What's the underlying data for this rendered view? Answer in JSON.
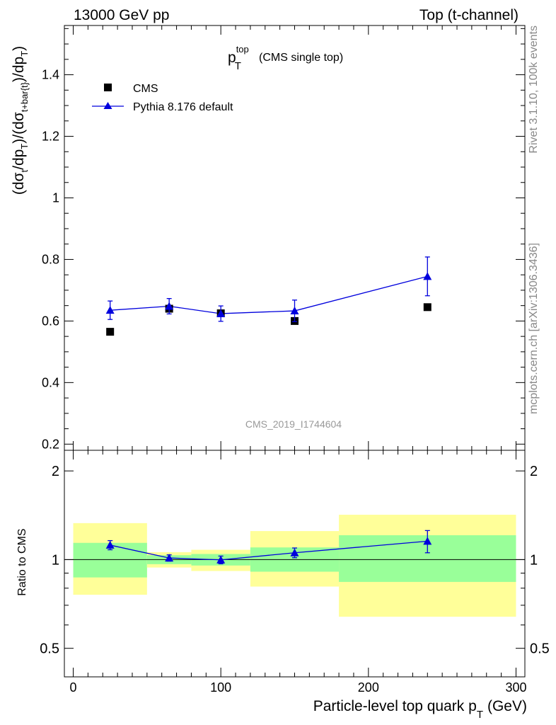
{
  "header": {
    "left": "13000 GeV pp",
    "right": "Top (t-channel)"
  },
  "side_text": {
    "top": "Rivet 3.1.10,  100k events",
    "bottom": "mcplots.cern.ch [arXiv:1306.3436]"
  },
  "watermark": "CMS_2019_I1744604",
  "title": {
    "main": "p",
    "sup": "top",
    "sub": "T",
    "suffix": "(CMS single top)"
  },
  "ylabel_main": {
    "p1": "(dσ",
    "s1": "t",
    "p2": "/dp",
    "s2": "T",
    "p3": ")/(dσ",
    "s3": "t+bar{t}",
    "p4": ")/dp",
    "s4": "T",
    "p5": ")"
  },
  "ylabel_ratio": "Ratio to CMS",
  "xlabel": {
    "main": "Particle-level top quark p",
    "sub": "T",
    "unit": "(GeV)"
  },
  "legend": {
    "data": "CMS",
    "mc": "Pythia 8.176 default"
  },
  "colors": {
    "mc": "#0000dd",
    "data": "#000000",
    "band_inner": "#99ff99",
    "band_outer": "#ffff99"
  },
  "chart_data": {
    "type": "scatter",
    "xlim": [
      -6,
      306
    ],
    "main_ylim": [
      0.18,
      1.56
    ],
    "ratio_ylim": [
      0.4,
      2.35
    ],
    "ratio_scale": "log",
    "x_ticks": [
      0,
      100,
      200,
      300
    ],
    "main_y_ticks": [
      0.2,
      0.4,
      0.6,
      0.8,
      1,
      1.2,
      1.4
    ],
    "ratio_y_ticks": [
      0.5,
      1,
      2
    ],
    "grid": false,
    "legend_position": "top-left",
    "data": {
      "name": "CMS",
      "x": [
        25,
        65,
        100,
        150,
        240
      ],
      "y": [
        0.565,
        0.64,
        0.625,
        0.6,
        0.645
      ]
    },
    "mc": {
      "name": "Pythia 8.176 default",
      "x": [
        25,
        65,
        100,
        150,
        240
      ],
      "y": [
        0.635,
        0.648,
        0.624,
        0.633,
        0.745
      ],
      "err": [
        0.03,
        0.025,
        0.025,
        0.035,
        0.063
      ]
    },
    "ratio": {
      "mc": [
        1.12,
        1.013,
        0.998,
        1.055,
        1.155
      ],
      "mc_err": [
        0.04,
        0.025,
        0.03,
        0.04,
        0.1
      ]
    },
    "bands": [
      {
        "x": [
          0,
          50
        ],
        "inner": [
          0.87,
          1.14
        ],
        "outer": [
          0.76,
          1.33
        ]
      },
      {
        "x": [
          50,
          80
        ],
        "inner": [
          0.965,
          1.035
        ],
        "outer": [
          0.94,
          1.06
        ]
      },
      {
        "x": [
          80,
          120
        ],
        "inner": [
          0.955,
          1.045
        ],
        "outer": [
          0.915,
          1.08
        ]
      },
      {
        "x": [
          120,
          180
        ],
        "inner": [
          0.91,
          1.1
        ],
        "outer": [
          0.81,
          1.25
        ]
      },
      {
        "x": [
          180,
          300
        ],
        "inner": [
          0.84,
          1.21
        ],
        "outer": [
          0.64,
          1.42
        ]
      }
    ]
  }
}
